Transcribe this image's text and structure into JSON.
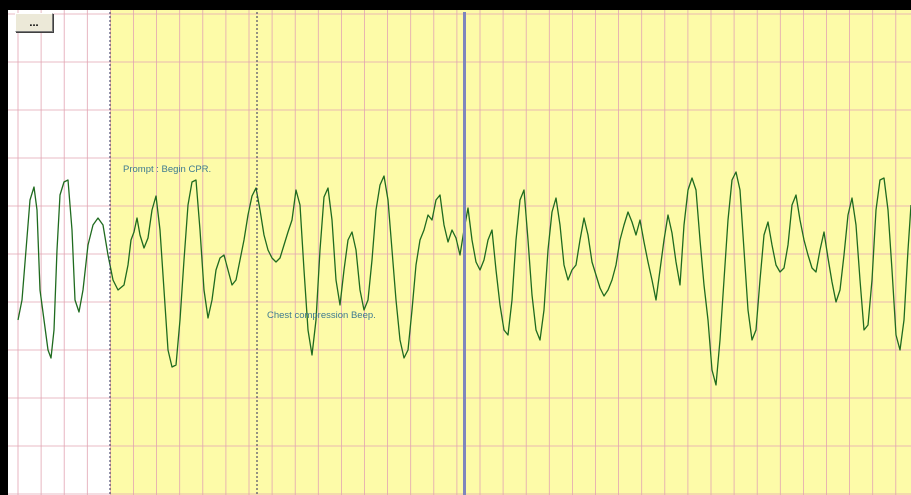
{
  "toolbar": {
    "menu_button_label": "..."
  },
  "annotations": {
    "prompt_label": "Prompt : Begin CPR.",
    "compression_label": "Chest compression Beep."
  },
  "colors": {
    "background_white": "#ffffff",
    "review_region": "#fdfba8",
    "grid_line": "#e2a4b2",
    "waveform": "#1f6b1f",
    "cursor": "#7f86bd",
    "marker_line": "#2b2b5a",
    "frame": "#000000",
    "annotation_text": "#3e7a90"
  }
}
